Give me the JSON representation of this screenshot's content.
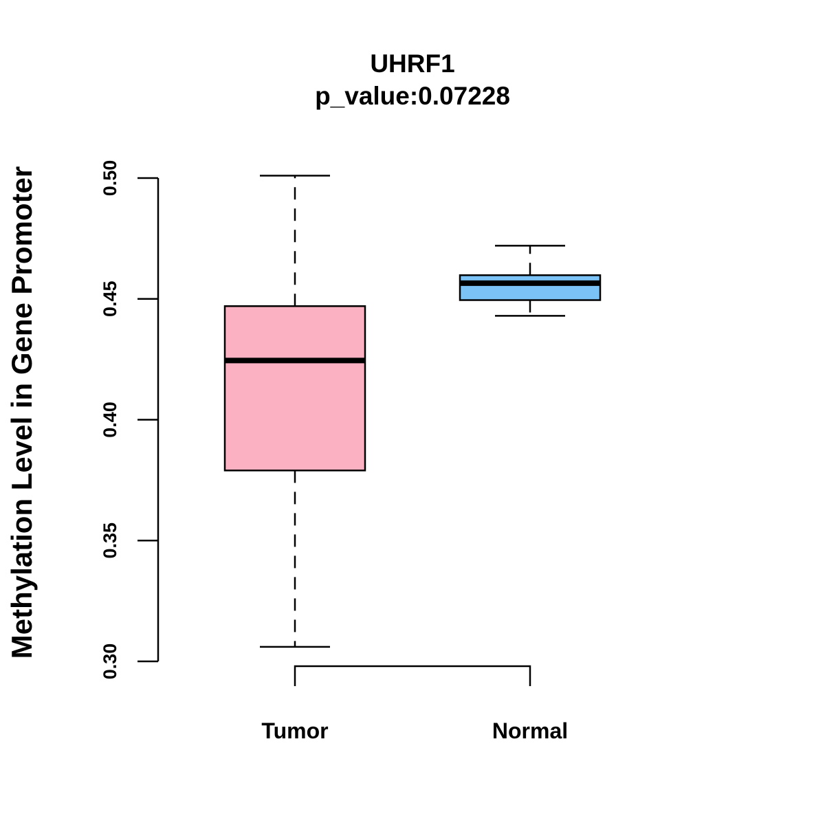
{
  "chart_data": {
    "type": "boxplot",
    "title": "UHRF1",
    "subtitle": "p_value:0.07228",
    "xlabel": "",
    "ylabel": "Methylation Level in Gene Promoter",
    "ylim": [
      0.3,
      0.5
    ],
    "yticks": [
      0.3,
      0.35,
      0.4,
      0.45,
      0.5
    ],
    "ytick_labels": [
      "0.30",
      "0.35",
      "0.40",
      "0.45",
      "0.50"
    ],
    "categories": [
      "Tumor",
      "Normal"
    ],
    "groups": [
      {
        "name": "Tumor",
        "whisker_low": 0.306,
        "q1": 0.379,
        "median": 0.4245,
        "q3": 0.447,
        "whisker_high": 0.501,
        "color": "#FCB1C3"
      },
      {
        "name": "Normal",
        "whisker_low": 0.443,
        "q1": 0.4495,
        "median": 0.4565,
        "q3": 0.4598,
        "whisker_high": 0.472,
        "color": "#7BC3F6"
      }
    ],
    "comparison_bracket": [
      "Tumor",
      "Normal"
    ],
    "grid": false
  }
}
